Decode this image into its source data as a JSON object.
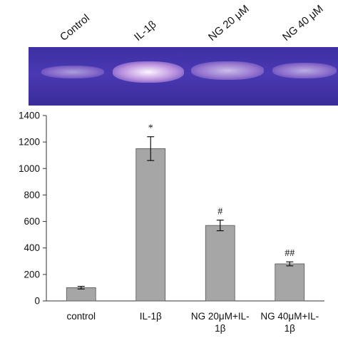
{
  "gel": {
    "lanes": [
      "Control",
      "IL-1β",
      "NG 20 μM",
      "NG 40 μM"
    ],
    "band_intensity": [
      0.3,
      1.0,
      0.55,
      0.42
    ]
  },
  "chart_data": {
    "type": "bar",
    "categories": [
      "control",
      "IL-1β",
      "NG 20μM+IL-\n1β",
      "NG 40μM+IL-\n1β"
    ],
    "values": [
      100,
      1150,
      570,
      280
    ],
    "errors": [
      10,
      90,
      40,
      15
    ],
    "significance": [
      "",
      "*",
      "#",
      "##"
    ],
    "ylim": [
      0,
      1400
    ],
    "yticks": [
      0,
      200,
      400,
      600,
      800,
      1000,
      1200,
      1400
    ],
    "bar_color": "#a6a6a6",
    "grid": false
  }
}
